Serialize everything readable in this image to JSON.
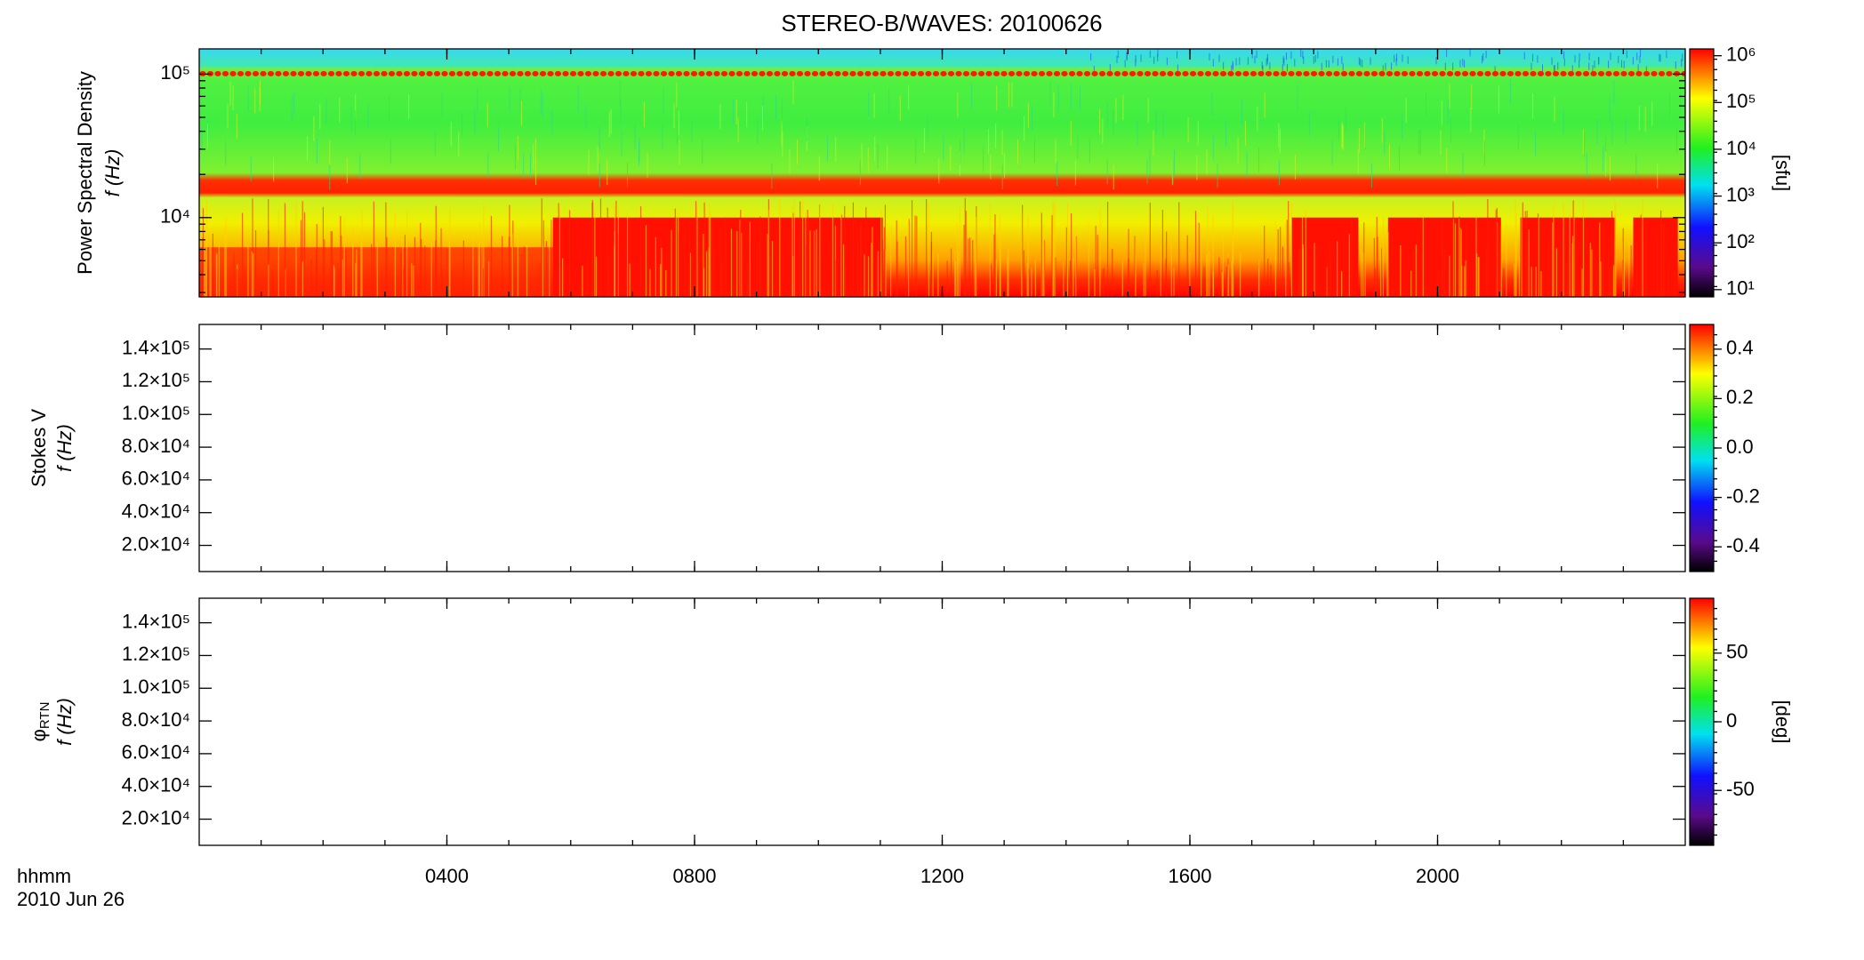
{
  "title": "STEREO-B/WAVES: 20100626",
  "x_axis": {
    "label": "hhmm",
    "date": "2010 Jun 26",
    "xlim": [
      0,
      24
    ],
    "minor_step": 1,
    "xticks": [
      {
        "value": 4,
        "label": "0400"
      },
      {
        "value": 8,
        "label": "0800"
      },
      {
        "value": 12,
        "label": "1200"
      },
      {
        "value": 16,
        "label": "1600"
      },
      {
        "value": 20,
        "label": "2000"
      }
    ]
  },
  "chart_data": [
    {
      "type": "heatmap",
      "ylabel": "Power Spectral Density",
      "ylabel2": "f (Hz)",
      "ylog": true,
      "ylim": [
        2800,
        150000
      ],
      "yticks": [
        {
          "value": 10000,
          "label": "10⁴"
        },
        {
          "value": 100000,
          "label": "10⁵"
        }
      ],
      "colorbar": {
        "log": true,
        "clim": [
          7,
          1400000
        ],
        "label": "[sfu]",
        "ticks": [
          {
            "value": 10,
            "label": "10¹"
          },
          {
            "value": 100,
            "label": "10²"
          },
          {
            "value": 1000,
            "label": "10³"
          },
          {
            "value": 10000,
            "label": "10⁴"
          },
          {
            "value": 100000,
            "label": "10⁵"
          },
          {
            "value": 1000000,
            "label": "10⁶"
          }
        ]
      }
    },
    {
      "type": "heatmap",
      "ylabel": "Stokes V",
      "ylabel2": "f (Hz)",
      "ylog": false,
      "ylim": [
        4000,
        155000
      ],
      "yticks": [
        {
          "value": 20000,
          "label": "2.0×10⁴"
        },
        {
          "value": 40000,
          "label": "4.0×10⁴"
        },
        {
          "value": 60000,
          "label": "6.0×10⁴"
        },
        {
          "value": 80000,
          "label": "8.0×10⁴"
        },
        {
          "value": 100000,
          "label": "1.0×10⁵"
        },
        {
          "value": 120000,
          "label": "1.2×10⁵"
        },
        {
          "value": 140000,
          "label": "1.4×10⁵"
        }
      ],
      "colorbar": {
        "log": false,
        "clim": [
          -0.5,
          0.5
        ],
        "ticks": [
          -0.4,
          -0.2,
          {
            "value": 0,
            "label": "0.0"
          },
          0.2,
          0.4
        ]
      }
    },
    {
      "type": "heatmap",
      "ylabel": "φ",
      "ylabel_sub": "RTN",
      "ylabel2": "f (Hz)",
      "ylog": false,
      "ylim": [
        4000,
        155000
      ],
      "yticks": [
        {
          "value": 20000,
          "label": "2.0×10⁴"
        },
        {
          "value": 40000,
          "label": "4.0×10⁴"
        },
        {
          "value": 60000,
          "label": "6.0×10⁴"
        },
        {
          "value": 80000,
          "label": "8.0×10⁴"
        },
        {
          "value": 100000,
          "label": "1.0×10⁵"
        },
        {
          "value": 120000,
          "label": "1.2×10⁵"
        },
        {
          "value": 140000,
          "label": "1.4×10⁵"
        }
      ],
      "colorbar": {
        "log": false,
        "clim": [
          -90,
          90
        ],
        "label": "[deg]",
        "ticks": [
          -50,
          0,
          50
        ]
      }
    }
  ]
}
